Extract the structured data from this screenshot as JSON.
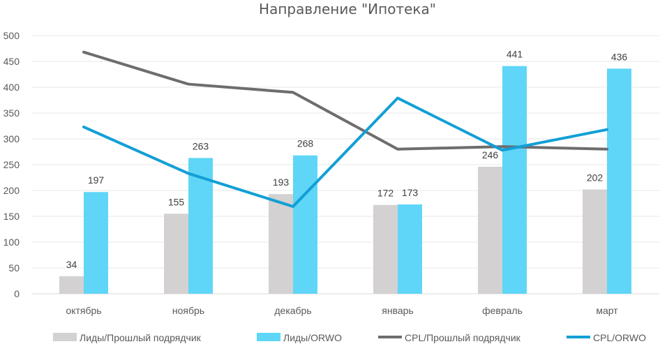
{
  "chart_data": {
    "type": "bar",
    "title": "Направление \"Ипотека\"",
    "xlabel": "",
    "ylabel": "",
    "categories": [
      "октябрь",
      "ноябрь",
      "декабрь",
      "январь",
      "февраль",
      "март"
    ],
    "ylim": [
      0,
      500
    ],
    "yticks": [
      0,
      50,
      100,
      150,
      200,
      250,
      300,
      350,
      400,
      450,
      500
    ],
    "grid": true,
    "legend_position": "bottom",
    "series": [
      {
        "name": "Лиды/Прошлый подрядчик",
        "kind": "bar",
        "color": "#d3d1d2",
        "values": [
          34,
          155,
          193,
          172,
          246,
          202
        ],
        "show_labels": true
      },
      {
        "name": "Лиды/ORWO",
        "kind": "bar",
        "color": "#5fd6f7",
        "values": [
          197,
          263,
          268,
          173,
          441,
          436
        ],
        "show_labels": true
      },
      {
        "name": "CPL/Прошлый подрядчик",
        "kind": "line",
        "color": "#6d6d6d",
        "values": [
          468,
          406,
          390,
          280,
          285,
          280
        ],
        "show_labels": false
      },
      {
        "name": "CPL/ORWO",
        "kind": "line",
        "color": "#129fd6",
        "values": [
          323,
          233,
          169,
          379,
          278,
          318
        ],
        "show_labels": false
      }
    ]
  }
}
